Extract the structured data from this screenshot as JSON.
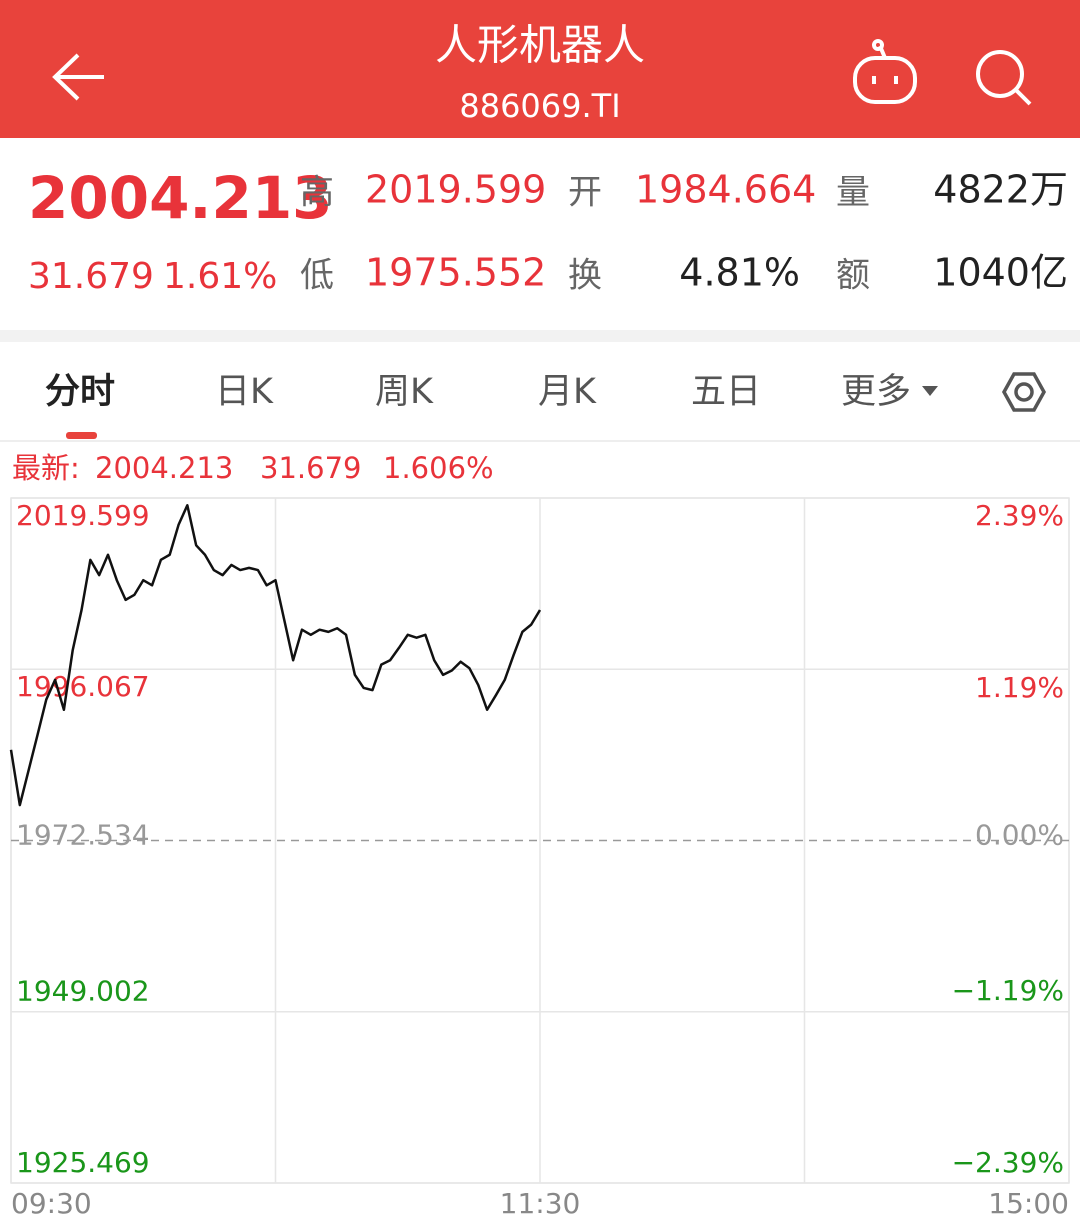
{
  "header": {
    "title": "人形机器人",
    "code": "886069.TI"
  },
  "quote": {
    "price": "2004.213",
    "change": "31.679",
    "change_pct": "1.61%",
    "fields": [
      {
        "label": "高",
        "value": "2019.599"
      },
      {
        "label": "开",
        "value": "1984.664"
      },
      {
        "label": "量",
        "value": "4822万"
      },
      {
        "label": "低",
        "value": "1975.552"
      },
      {
        "label": "换",
        "value": "4.81%"
      },
      {
        "label": "额",
        "value": "1040亿"
      }
    ]
  },
  "tabs": [
    "分时",
    "日K",
    "周K",
    "月K",
    "五日",
    "更多"
  ],
  "chart_header": {
    "label": "最新:",
    "values": [
      "2004.213",
      "31.679",
      "1.606%"
    ]
  },
  "chart_data": {
    "type": "line",
    "color": "#111111",
    "up_color": "#e8333a",
    "down_color": "#1a961a",
    "flat_color": "#999999",
    "grid": true,
    "x": [
      "09:30",
      "09:32",
      "09:34",
      "09:36",
      "09:38",
      "09:40",
      "09:42",
      "09:44",
      "09:46",
      "09:48",
      "09:50",
      "09:52",
      "09:54",
      "09:56",
      "09:58",
      "10:00",
      "10:02",
      "10:04",
      "10:06",
      "10:08",
      "10:10",
      "10:12",
      "10:14",
      "10:16",
      "10:18",
      "10:20",
      "10:22",
      "10:24",
      "10:26",
      "10:28",
      "10:30",
      "10:32",
      "10:34",
      "10:36",
      "10:38",
      "10:40",
      "10:42",
      "10:44",
      "10:46",
      "10:48",
      "10:50",
      "10:52",
      "10:54",
      "10:56",
      "10:58",
      "11:00",
      "11:02",
      "11:04",
      "11:06",
      "11:08",
      "11:10",
      "11:12",
      "11:14",
      "11:16",
      "11:18",
      "11:20",
      "11:22",
      "11:24",
      "11:26",
      "11:28",
      "11:30"
    ],
    "values": [
      1985.0,
      1977.4,
      1982.2,
      1987.0,
      1991.9,
      1994.6,
      1990.5,
      1998.7,
      2004.2,
      2011.1,
      2009.0,
      2011.8,
      2008.3,
      2005.6,
      2006.3,
      2008.3,
      2007.6,
      2011.1,
      2011.8,
      2015.9,
      2018.6,
      2013.1,
      2011.8,
      2009.7,
      2009.0,
      2010.4,
      2009.7,
      2010.0,
      2009.7,
      2007.6,
      2008.3,
      2002.8,
      1997.3,
      2001.5,
      2000.8,
      2001.5,
      2001.2,
      2001.7,
      2000.8,
      1995.3,
      1993.5,
      1993.2,
      1996.7,
      1997.3,
      1999.0,
      2000.8,
      2000.4,
      2000.8,
      1997.3,
      1995.3,
      1995.9,
      1997.1,
      1996.2,
      1993.9,
      1990.5,
      1992.5,
      1994.6,
      1998.0,
      2001.2,
      2002.2,
      2004.213
    ],
    "xlim": [
      "09:30",
      "15:00"
    ],
    "xticks": [
      "09:30",
      "11:30",
      "15:00"
    ],
    "ylim": [
      1925.469,
      2019.599
    ],
    "yticks": [
      2019.599,
      1996.067,
      1972.534,
      1949.002,
      1925.469
    ],
    "y2lim": [
      -2.39,
      2.39
    ],
    "y2ticks": [
      {
        "value": 2.39,
        "label": "2.39%"
      },
      {
        "value": 1.19,
        "label": "1.19%"
      },
      {
        "value": 0,
        "label": "0.00%"
      },
      {
        "value": -1.19,
        "label": "−1.19%"
      },
      {
        "value": -2.39,
        "label": "−2.39%"
      }
    ]
  }
}
